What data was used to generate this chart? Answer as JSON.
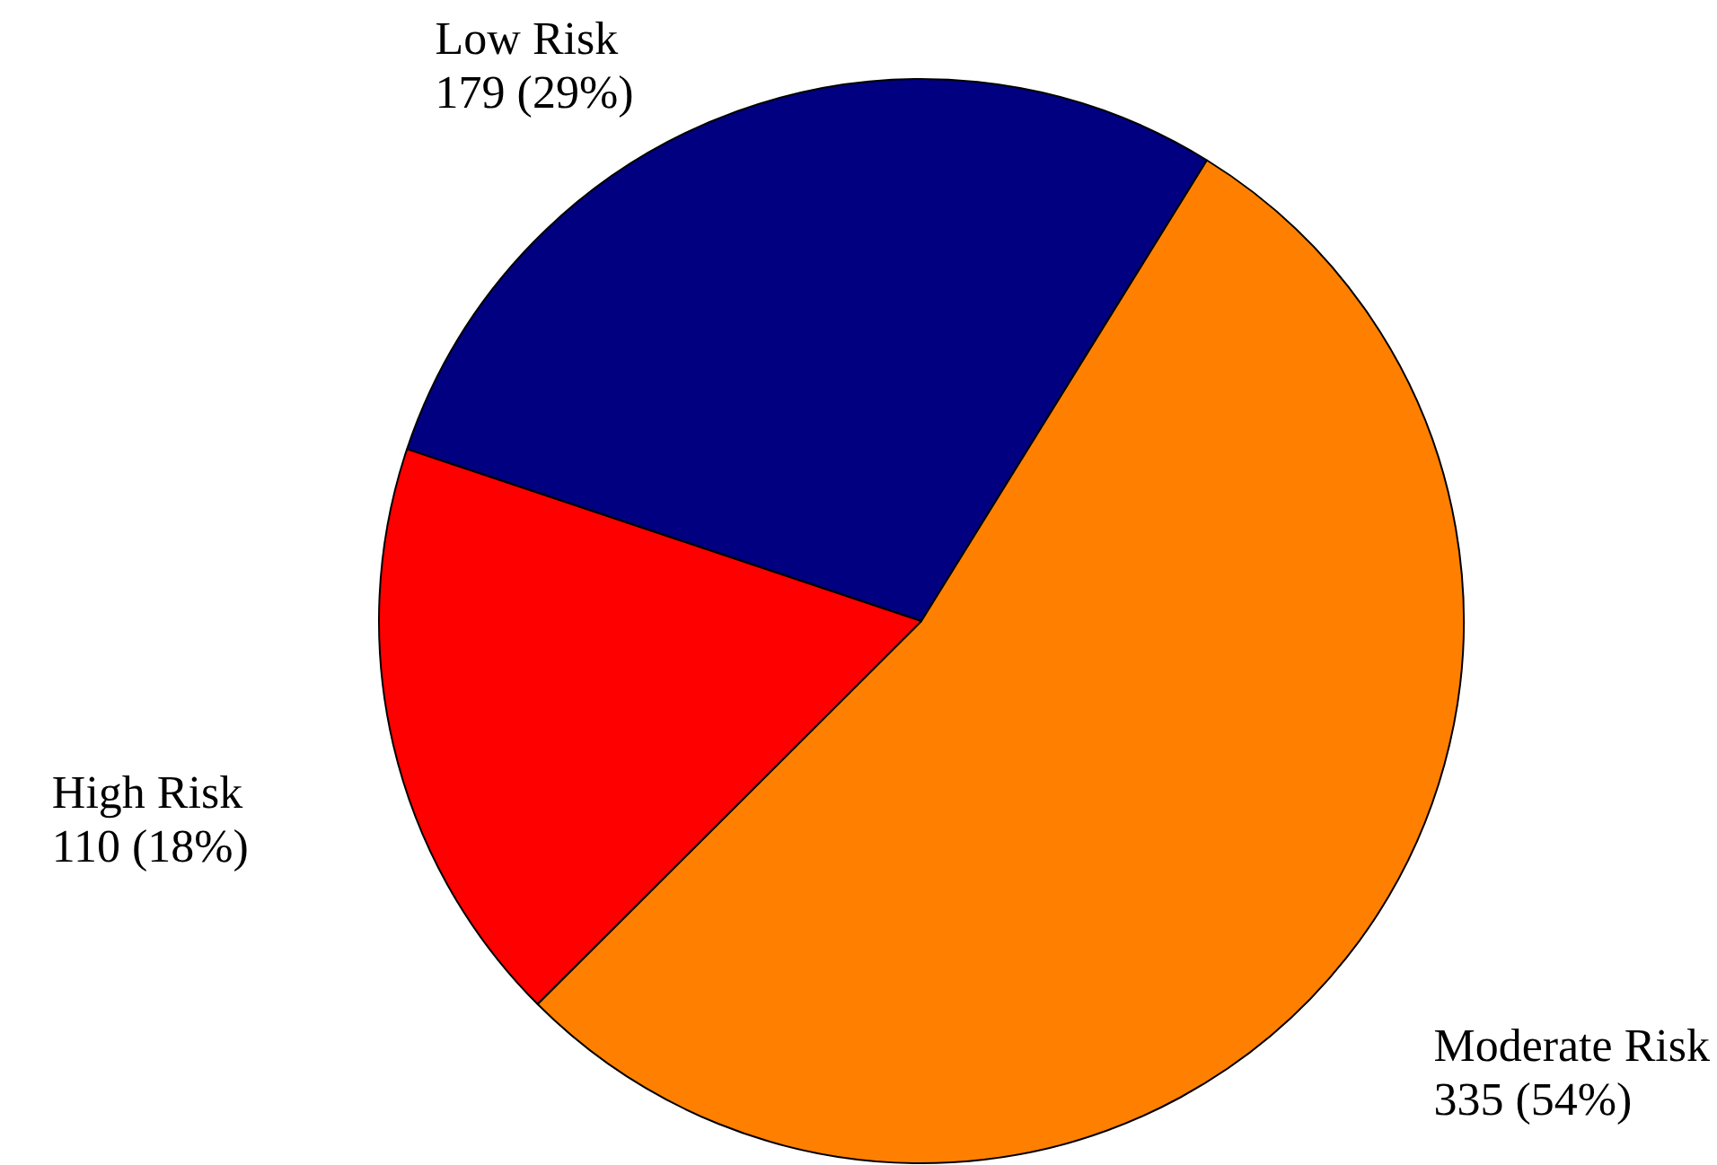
{
  "chart_data": {
    "type": "pie",
    "categories": [
      "Low Risk",
      "Moderate Risk",
      "High Risk"
    ],
    "values": [
      179,
      335,
      110
    ],
    "colors": [
      "#000080",
      "#ff8000",
      "#ff0000"
    ],
    "value_labels": [
      "179 (29%)",
      "335 (54%)",
      "110 (18%)"
    ]
  }
}
